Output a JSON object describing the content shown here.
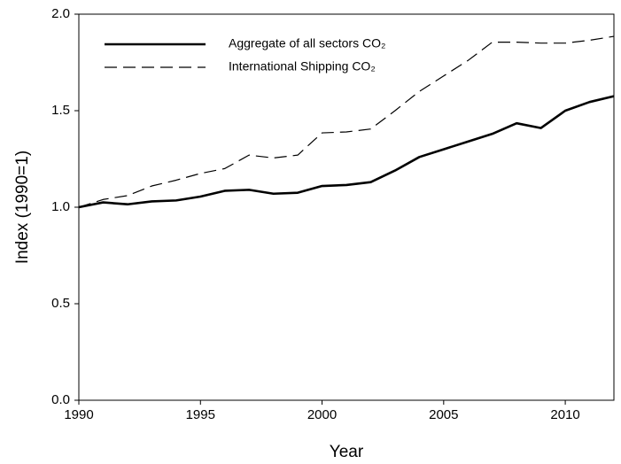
{
  "chart_data": {
    "type": "line",
    "x_label": "Year",
    "y_label": "Index (1990=1)",
    "x": [
      1990,
      1991,
      1992,
      1993,
      1994,
      1995,
      1996,
      1997,
      1998,
      1999,
      2000,
      2001,
      2002,
      2003,
      2004,
      2005,
      2006,
      2007,
      2008,
      2009,
      2010,
      2011,
      2012
    ],
    "series": [
      {
        "name": "Aggregate of all sectors CO₂",
        "color": "#000000",
        "style": "solid",
        "values": [
          1.0,
          1.025,
          1.015,
          1.03,
          1.035,
          1.055,
          1.085,
          1.09,
          1.07,
          1.075,
          1.11,
          1.115,
          1.13,
          1.19,
          1.26,
          1.3,
          1.34,
          1.38,
          1.435,
          1.41,
          1.5,
          1.545,
          1.575
        ]
      },
      {
        "name": "International Shipping CO₂",
        "color": "#000000",
        "style": "dashed",
        "values": [
          1.0,
          1.04,
          1.06,
          1.11,
          1.14,
          1.175,
          1.2,
          1.27,
          1.255,
          1.27,
          1.385,
          1.39,
          1.405,
          1.5,
          1.6,
          1.68,
          1.76,
          1.855,
          1.855,
          1.85,
          1.85,
          1.865,
          1.885
        ]
      }
    ],
    "xlim": [
      1990,
      2012
    ],
    "xticks": [
      1990,
      1995,
      2000,
      2005,
      2010
    ],
    "ylim": [
      0,
      2
    ],
    "yticks": [
      {
        "value": 0,
        "label": "0.0"
      },
      {
        "value": 0.5,
        "label": "0.5"
      },
      {
        "value": 1,
        "label": "1.0"
      },
      {
        "value": 1.5,
        "label": "1.5"
      },
      {
        "value": 2,
        "label": "2.0"
      }
    ],
    "legend": "upper left",
    "grid": false
  }
}
